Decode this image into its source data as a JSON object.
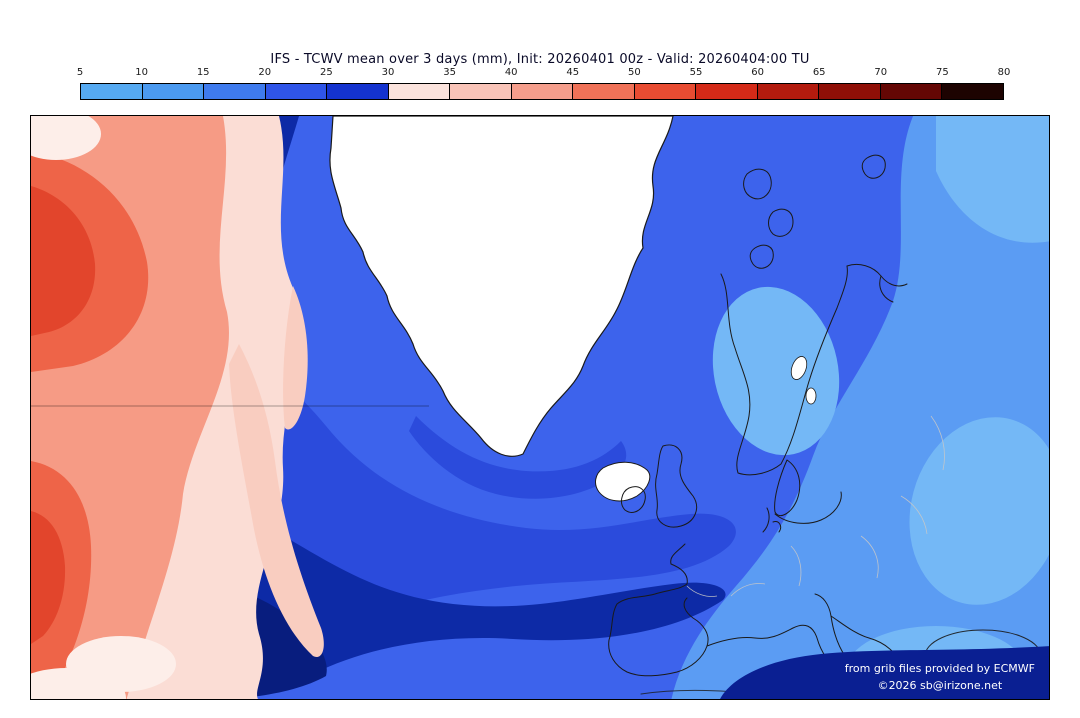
{
  "header": {
    "title": "IFS - TCWV mean over 3 days (mm), Init: 20260401 00z - Valid: 20260404:00 TU"
  },
  "colorbar": {
    "unit": "mm",
    "ticks": [
      "5",
      "10",
      "15",
      "20",
      "25",
      "30",
      "35",
      "40",
      "45",
      "50",
      "55",
      "60",
      "65",
      "70",
      "75",
      "80"
    ],
    "segment_colors": [
      "#56aaf2",
      "#4b9af0",
      "#3f7bee",
      "#2f55e8",
      "#1433cf",
      "#fbe3dd",
      "#f9c4b8",
      "#f59e8c",
      "#f07258",
      "#e84c32",
      "#d42a18",
      "#b31b0e",
      "#8f0f07",
      "#640704",
      "#1d0301"
    ]
  },
  "credits": {
    "line1": "from grib files provided by ECMWF",
    "line2": "©2026 sb@irizone.net"
  },
  "palette": {
    "base_blue": "#3d63ec",
    "light_blue": "#5b9cf3",
    "lighter_blue": "#74b8f6",
    "deep_blue": "#2b4bdc",
    "navy": "#0d2aa6",
    "dark_navy": "#081d7e",
    "pale_pink": "#fbddd5",
    "pink_band": "#f9cdc0",
    "salmon": "#f69b85",
    "red": "#ee6448",
    "deep_red": "#e2452c",
    "land_white": "#ffffff",
    "coastline": "#1a1a1a",
    "credits_bg": "#0a1f92",
    "credits_text": "#ffffff"
  }
}
